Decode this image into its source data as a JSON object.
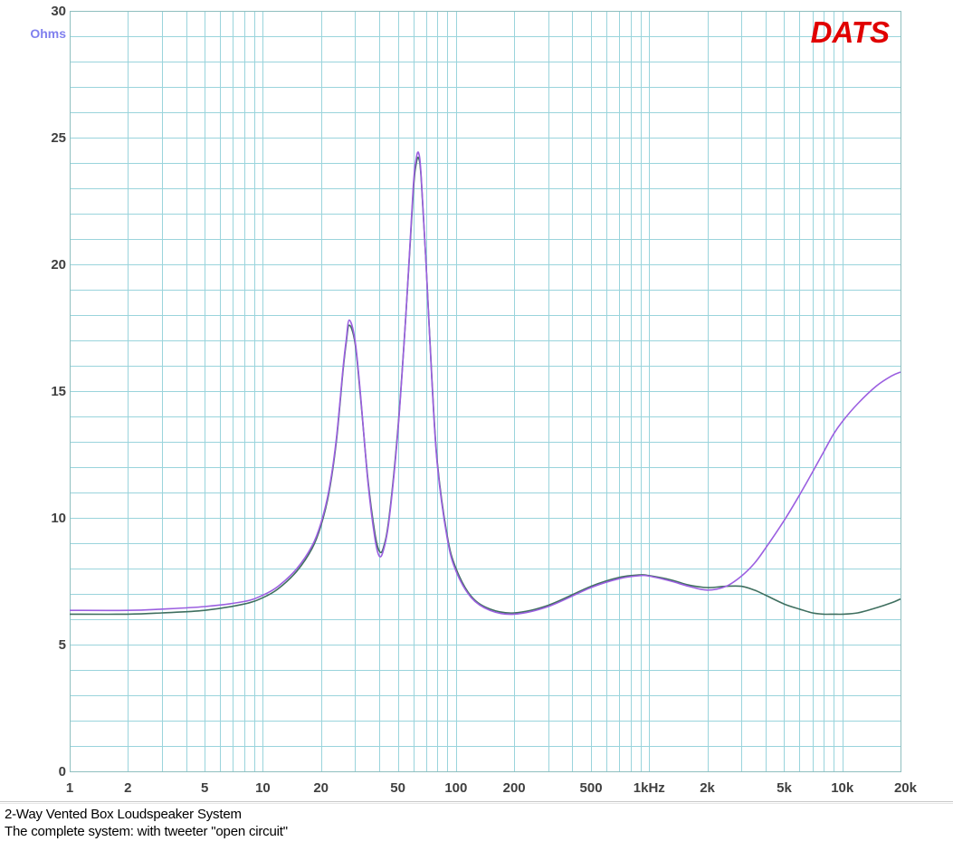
{
  "chart_data": {
    "type": "line",
    "brand": "DATS",
    "unit_label": "Ohms",
    "x_scale": "log",
    "xlim": [
      1,
      20000
    ],
    "ylim": [
      0,
      30
    ],
    "grid": true,
    "legend": "none",
    "y_ticks": [
      {
        "value": 0,
        "label": "0"
      },
      {
        "value": 5,
        "label": "5"
      },
      {
        "value": 10,
        "label": "10"
      },
      {
        "value": 15,
        "label": "15"
      },
      {
        "value": 20,
        "label": "20"
      },
      {
        "value": 25,
        "label": "25"
      },
      {
        "value": 30,
        "label": "30"
      }
    ],
    "x_ticks": [
      {
        "value": 1,
        "label": "1"
      },
      {
        "value": 2,
        "label": "2"
      },
      {
        "value": 5,
        "label": "5"
      },
      {
        "value": 10,
        "label": "10"
      },
      {
        "value": 20,
        "label": "20"
      },
      {
        "value": 50,
        "label": "50"
      },
      {
        "value": 100,
        "label": "100"
      },
      {
        "value": 200,
        "label": "200"
      },
      {
        "value": 500,
        "label": "500"
      },
      {
        "value": 1000,
        "label": "1kHz"
      },
      {
        "value": 2000,
        "label": "2k"
      },
      {
        "value": 5000,
        "label": "5k"
      },
      {
        "value": 10000,
        "label": "10k"
      },
      {
        "value": 20000,
        "label": "20k"
      }
    ],
    "series": [
      {
        "color": "#3f6f5f",
        "x": [
          1,
          2,
          3,
          5,
          8,
          10,
          12,
          15,
          18,
          20,
          22,
          24,
          26,
          27,
          28,
          30,
          32,
          35,
          38,
          40,
          42,
          45,
          50,
          55,
          60,
          62,
          64,
          66,
          70,
          75,
          80,
          90,
          100,
          120,
          150,
          200,
          300,
          500,
          700,
          900,
          1000,
          1300,
          1600,
          2000,
          2500,
          3000,
          3500,
          4000,
          5000,
          6000,
          7000,
          8000,
          9000,
          10000,
          12000,
          15000,
          18000,
          20000
        ],
        "values": [
          6.2,
          6.2,
          6.25,
          6.35,
          6.6,
          6.85,
          7.2,
          7.9,
          8.8,
          9.7,
          11.0,
          13.0,
          15.8,
          16.9,
          17.6,
          16.9,
          14.8,
          11.5,
          9.4,
          8.7,
          8.8,
          10.0,
          13.5,
          18.0,
          22.8,
          23.9,
          24.2,
          23.4,
          20.0,
          15.5,
          12.2,
          9.3,
          8.0,
          6.9,
          6.4,
          6.25,
          6.55,
          7.3,
          7.65,
          7.75,
          7.72,
          7.55,
          7.35,
          7.25,
          7.3,
          7.3,
          7.15,
          6.95,
          6.6,
          6.4,
          6.25,
          6.2,
          6.2,
          6.2,
          6.25,
          6.45,
          6.65,
          6.8
        ]
      },
      {
        "color": "#9b5fe0",
        "x": [
          1,
          2,
          3,
          5,
          8,
          10,
          12,
          15,
          18,
          20,
          22,
          24,
          26,
          27,
          28,
          30,
          32,
          35,
          38,
          40,
          42,
          45,
          50,
          55,
          60,
          62,
          64,
          66,
          70,
          75,
          80,
          90,
          100,
          120,
          150,
          200,
          300,
          500,
          700,
          900,
          1000,
          1300,
          1600,
          2000,
          2500,
          3000,
          3500,
          4000,
          5000,
          6000,
          7000,
          8000,
          9000,
          10000,
          12000,
          15000,
          18000,
          20000
        ],
        "values": [
          6.35,
          6.35,
          6.4,
          6.5,
          6.7,
          6.95,
          7.3,
          8.0,
          8.9,
          9.8,
          11.1,
          13.1,
          15.9,
          17.0,
          17.8,
          17.0,
          14.9,
          11.4,
          9.2,
          8.5,
          8.7,
          9.9,
          13.4,
          18.0,
          23.0,
          24.1,
          24.4,
          23.5,
          20.0,
          15.4,
          12.1,
          9.2,
          7.9,
          6.85,
          6.35,
          6.2,
          6.5,
          7.25,
          7.6,
          7.72,
          7.7,
          7.5,
          7.3,
          7.15,
          7.3,
          7.7,
          8.2,
          8.8,
          9.9,
          10.9,
          11.8,
          12.6,
          13.3,
          13.8,
          14.5,
          15.2,
          15.6,
          15.75
        ]
      }
    ],
    "caption_lines": [
      "2-Way Vented Box Loudspeaker System",
      "The complete system: with tweeter \"open circuit\""
    ],
    "colors": {
      "grid": "#9ad4dc",
      "axis_frame": "#8fbfbf",
      "tick_text": "#404040",
      "unit_text": "#8080ee",
      "brand_text": "#e00000"
    }
  }
}
